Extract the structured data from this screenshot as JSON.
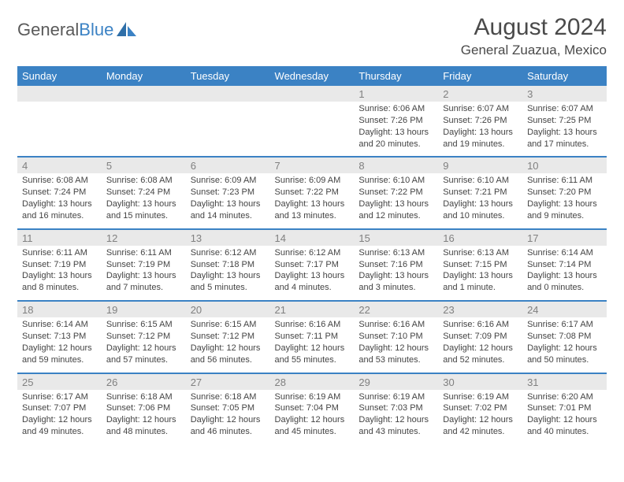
{
  "logo": {
    "word1": "General",
    "word2": "Blue"
  },
  "title": "August 2024",
  "subtitle": "General Zuazua, Mexico",
  "colors": {
    "header_bg": "#3b82c4",
    "header_fg": "#ffffff",
    "daynum_bg": "#e9e9e9",
    "daynum_fg": "#808080",
    "rule": "#3b82c4",
    "text": "#444444",
    "title": "#4a4a4a",
    "page_bg": "#ffffff"
  },
  "typography": {
    "title_fontsize": 30,
    "subtitle_fontsize": 17,
    "dayheader_fontsize": 13,
    "daynum_fontsize": 13,
    "detail_fontsize": 11
  },
  "layout": {
    "columns": 7,
    "weeks": 5,
    "start_day_index": 4
  },
  "days": [
    "Sunday",
    "Monday",
    "Tuesday",
    "Wednesday",
    "Thursday",
    "Friday",
    "Saturday"
  ],
  "cells": [
    [
      null,
      null,
      null,
      null,
      {
        "n": "1",
        "sunrise": "6:06 AM",
        "sunset": "7:26 PM",
        "dl": "13 hours and 20 minutes."
      },
      {
        "n": "2",
        "sunrise": "6:07 AM",
        "sunset": "7:26 PM",
        "dl": "13 hours and 19 minutes."
      },
      {
        "n": "3",
        "sunrise": "6:07 AM",
        "sunset": "7:25 PM",
        "dl": "13 hours and 17 minutes."
      }
    ],
    [
      {
        "n": "4",
        "sunrise": "6:08 AM",
        "sunset": "7:24 PM",
        "dl": "13 hours and 16 minutes."
      },
      {
        "n": "5",
        "sunrise": "6:08 AM",
        "sunset": "7:24 PM",
        "dl": "13 hours and 15 minutes."
      },
      {
        "n": "6",
        "sunrise": "6:09 AM",
        "sunset": "7:23 PM",
        "dl": "13 hours and 14 minutes."
      },
      {
        "n": "7",
        "sunrise": "6:09 AM",
        "sunset": "7:22 PM",
        "dl": "13 hours and 13 minutes."
      },
      {
        "n": "8",
        "sunrise": "6:10 AM",
        "sunset": "7:22 PM",
        "dl": "13 hours and 12 minutes."
      },
      {
        "n": "9",
        "sunrise": "6:10 AM",
        "sunset": "7:21 PM",
        "dl": "13 hours and 10 minutes."
      },
      {
        "n": "10",
        "sunrise": "6:11 AM",
        "sunset": "7:20 PM",
        "dl": "13 hours and 9 minutes."
      }
    ],
    [
      {
        "n": "11",
        "sunrise": "6:11 AM",
        "sunset": "7:19 PM",
        "dl": "13 hours and 8 minutes."
      },
      {
        "n": "12",
        "sunrise": "6:11 AM",
        "sunset": "7:19 PM",
        "dl": "13 hours and 7 minutes."
      },
      {
        "n": "13",
        "sunrise": "6:12 AM",
        "sunset": "7:18 PM",
        "dl": "13 hours and 5 minutes."
      },
      {
        "n": "14",
        "sunrise": "6:12 AM",
        "sunset": "7:17 PM",
        "dl": "13 hours and 4 minutes."
      },
      {
        "n": "15",
        "sunrise": "6:13 AM",
        "sunset": "7:16 PM",
        "dl": "13 hours and 3 minutes."
      },
      {
        "n": "16",
        "sunrise": "6:13 AM",
        "sunset": "7:15 PM",
        "dl": "13 hours and 1 minute."
      },
      {
        "n": "17",
        "sunrise": "6:14 AM",
        "sunset": "7:14 PM",
        "dl": "13 hours and 0 minutes."
      }
    ],
    [
      {
        "n": "18",
        "sunrise": "6:14 AM",
        "sunset": "7:13 PM",
        "dl": "12 hours and 59 minutes."
      },
      {
        "n": "19",
        "sunrise": "6:15 AM",
        "sunset": "7:12 PM",
        "dl": "12 hours and 57 minutes."
      },
      {
        "n": "20",
        "sunrise": "6:15 AM",
        "sunset": "7:12 PM",
        "dl": "12 hours and 56 minutes."
      },
      {
        "n": "21",
        "sunrise": "6:16 AM",
        "sunset": "7:11 PM",
        "dl": "12 hours and 55 minutes."
      },
      {
        "n": "22",
        "sunrise": "6:16 AM",
        "sunset": "7:10 PM",
        "dl": "12 hours and 53 minutes."
      },
      {
        "n": "23",
        "sunrise": "6:16 AM",
        "sunset": "7:09 PM",
        "dl": "12 hours and 52 minutes."
      },
      {
        "n": "24",
        "sunrise": "6:17 AM",
        "sunset": "7:08 PM",
        "dl": "12 hours and 50 minutes."
      }
    ],
    [
      {
        "n": "25",
        "sunrise": "6:17 AM",
        "sunset": "7:07 PM",
        "dl": "12 hours and 49 minutes."
      },
      {
        "n": "26",
        "sunrise": "6:18 AM",
        "sunset": "7:06 PM",
        "dl": "12 hours and 48 minutes."
      },
      {
        "n": "27",
        "sunrise": "6:18 AM",
        "sunset": "7:05 PM",
        "dl": "12 hours and 46 minutes."
      },
      {
        "n": "28",
        "sunrise": "6:19 AM",
        "sunset": "7:04 PM",
        "dl": "12 hours and 45 minutes."
      },
      {
        "n": "29",
        "sunrise": "6:19 AM",
        "sunset": "7:03 PM",
        "dl": "12 hours and 43 minutes."
      },
      {
        "n": "30",
        "sunrise": "6:19 AM",
        "sunset": "7:02 PM",
        "dl": "12 hours and 42 minutes."
      },
      {
        "n": "31",
        "sunrise": "6:20 AM",
        "sunset": "7:01 PM",
        "dl": "12 hours and 40 minutes."
      }
    ]
  ],
  "labels": {
    "sunrise": "Sunrise: ",
    "sunset": "Sunset: ",
    "daylight": "Daylight: "
  }
}
